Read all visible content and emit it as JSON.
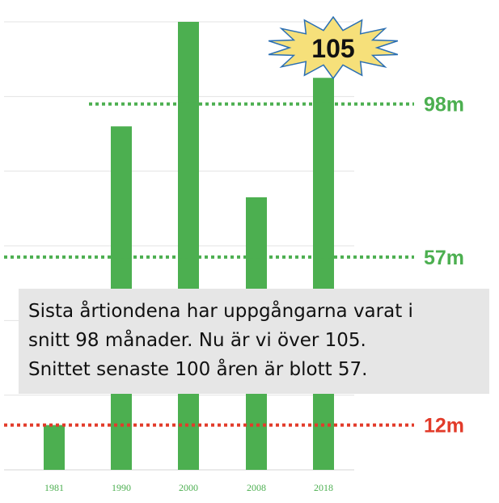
{
  "chart_data": {
    "type": "bar",
    "categories": [
      "1981",
      "1990",
      "2000",
      "2008",
      "2018"
    ],
    "values": [
      12,
      92,
      120,
      73,
      105
    ],
    "ylim": [
      0,
      120
    ],
    "grid": true,
    "colors": {
      "bar": "#4caf50",
      "ref_green": "#4caf50",
      "ref_red": "#e23b2a",
      "grid": "#e3e3e3"
    },
    "reference_lines": [
      {
        "value": 98,
        "label": "98m",
        "color": "#4caf50"
      },
      {
        "value": 57,
        "label": "57m",
        "color": "#4caf50"
      },
      {
        "value": 12,
        "label": "12m",
        "color": "#e23b2a"
      }
    ],
    "highlight": {
      "category": "2018",
      "label": "105"
    }
  },
  "callout": {
    "lines": [
      "Sista årtiondena har uppgångarna varat i",
      "snitt 98 månader. Nu är vi över 105.",
      "Snittet senaste 100 åren är blott 57."
    ]
  }
}
